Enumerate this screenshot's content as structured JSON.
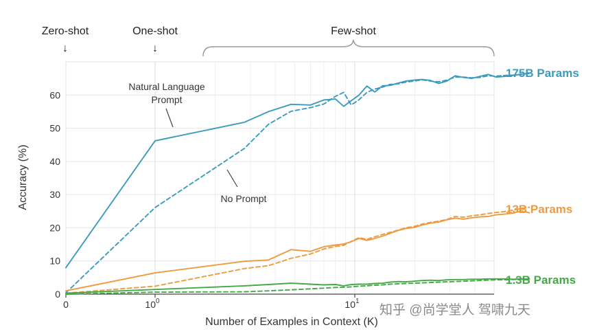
{
  "chart_data": {
    "type": "line",
    "x_scale": "log (0 placed at left edge)",
    "xlabel": "Number of Examples in Context  (K)",
    "ylabel": "Accuracy (%)",
    "ylim": [
      0,
      70
    ],
    "yticks": [
      0,
      10,
      20,
      30,
      40,
      50,
      60
    ],
    "xticks": [
      {
        "x": 0,
        "label": "0"
      },
      {
        "x": 1,
        "label": "10",
        "exp": "0"
      },
      {
        "x": 10,
        "label": "10",
        "exp": "1"
      }
    ],
    "grid": true,
    "regions": [
      {
        "label": "Zero-shot",
        "marker": "↓"
      },
      {
        "label": "One-shot",
        "marker": "↓"
      },
      {
        "label": "Few-shot",
        "marker": "brace"
      }
    ],
    "groups": [
      {
        "label": "175B Params",
        "color": "#3a9bbd"
      },
      {
        "label": "13B Params",
        "color": "#ef9a3d"
      },
      {
        "label": "1.3B Params",
        "color": "#43a846"
      }
    ],
    "annotations": [
      {
        "text": [
          "Natural Language",
          "Prompt"
        ]
      },
      {
        "text": [
          "No Prompt"
        ]
      }
    ],
    "series": [
      {
        "group": 0,
        "style": "solid",
        "points": [
          [
            0,
            8
          ],
          [
            1,
            46.2
          ],
          [
            2.8,
            51.8
          ],
          [
            3.7,
            55
          ],
          [
            4.8,
            57.2
          ],
          [
            6,
            57
          ],
          [
            7,
            58.5
          ],
          [
            8,
            58.8
          ],
          [
            8.8,
            56.6
          ],
          [
            9.6,
            58.3
          ],
          [
            10.5,
            60
          ],
          [
            11.5,
            62.7
          ],
          [
            12.6,
            60.9
          ],
          [
            13.8,
            62.8
          ],
          [
            15,
            62.9
          ],
          [
            16.5,
            63.6
          ],
          [
            18,
            64.2
          ],
          [
            19.8,
            64.5
          ],
          [
            21.7,
            64.7
          ],
          [
            23.9,
            64.4
          ],
          [
            26.3,
            63.5
          ],
          [
            28.9,
            64.2
          ],
          [
            31.8,
            65.8
          ],
          [
            35,
            65.3
          ],
          [
            38.5,
            65
          ],
          [
            42.3,
            65.6
          ],
          [
            46.5,
            66.2
          ],
          [
            51.1,
            65.4
          ],
          [
            56.2,
            65.6
          ],
          [
            61.9,
            65.9
          ],
          [
            68,
            66.3
          ],
          [
            74.8,
            66.5
          ]
        ]
      },
      {
        "group": 0,
        "style": "dashed",
        "points": [
          [
            0,
            0.4
          ],
          [
            1,
            26.1
          ],
          [
            2.8,
            43.9
          ],
          [
            3.7,
            51.2
          ],
          [
            4.8,
            55.1
          ],
          [
            6,
            56.2
          ],
          [
            7,
            57.3
          ],
          [
            8,
            59.6
          ],
          [
            8.8,
            60.8
          ],
          [
            9.6,
            57
          ],
          [
            10.5,
            58.6
          ],
          [
            11.5,
            60.8
          ],
          [
            12.6,
            61.8
          ],
          [
            13.8,
            62.4
          ],
          [
            15,
            63.2
          ],
          [
            16.5,
            63.4
          ],
          [
            18,
            63.9
          ],
          [
            19.8,
            64.2
          ],
          [
            21.7,
            64.6
          ],
          [
            23.9,
            64.2
          ],
          [
            26.3,
            64
          ],
          [
            28.9,
            64.5
          ],
          [
            31.8,
            65.4
          ],
          [
            35,
            65.4
          ],
          [
            38.5,
            65.2
          ],
          [
            42.3,
            65.3
          ],
          [
            46.5,
            65.8
          ],
          [
            51.1,
            65.7
          ],
          [
            56.2,
            65.9
          ],
          [
            61.9,
            66
          ],
          [
            68,
            66.2
          ],
          [
            74.8,
            66.6
          ]
        ]
      },
      {
        "group": 1,
        "style": "solid",
        "points": [
          [
            0,
            1
          ],
          [
            1,
            6.4
          ],
          [
            2.8,
            9.9
          ],
          [
            3.7,
            10.3
          ],
          [
            4.8,
            13.4
          ],
          [
            6,
            12.9
          ],
          [
            7,
            14.3
          ],
          [
            8,
            14.8
          ],
          [
            8.8,
            15.1
          ],
          [
            9.6,
            15.8
          ],
          [
            10.5,
            16.8
          ],
          [
            11.5,
            16.2
          ],
          [
            12.6,
            16.8
          ],
          [
            13.8,
            17.5
          ],
          [
            15,
            18.3
          ],
          [
            16.5,
            19.2
          ],
          [
            18,
            19.8
          ],
          [
            19.8,
            20.1
          ],
          [
            21.7,
            20.8
          ],
          [
            23.9,
            21.4
          ],
          [
            26.3,
            21.7
          ],
          [
            28.9,
            22.4
          ],
          [
            31.8,
            22.9
          ],
          [
            35,
            22.6
          ],
          [
            38.5,
            23
          ],
          [
            42.3,
            23.3
          ],
          [
            46.5,
            23.4
          ],
          [
            51.1,
            23.9
          ],
          [
            56.2,
            24.1
          ],
          [
            61.9,
            24.4
          ],
          [
            68,
            25.1
          ],
          [
            74.8,
            24.5
          ]
        ]
      },
      {
        "group": 1,
        "style": "dashed",
        "points": [
          [
            0,
            0.3
          ],
          [
            1,
            2.4
          ],
          [
            2.8,
            7.7
          ],
          [
            3.7,
            8.6
          ],
          [
            4.8,
            10.8
          ],
          [
            6,
            12.1
          ],
          [
            7,
            13.6
          ],
          [
            8,
            14.4
          ],
          [
            8.8,
            14.7
          ],
          [
            9.6,
            15.9
          ],
          [
            10.5,
            17
          ],
          [
            11.5,
            16.5
          ],
          [
            12.6,
            17.3
          ],
          [
            13.8,
            18
          ],
          [
            15,
            18.6
          ],
          [
            16.5,
            19.3
          ],
          [
            18,
            20
          ],
          [
            19.8,
            20.4
          ],
          [
            21.7,
            21.1
          ],
          [
            23.9,
            21.6
          ],
          [
            26.3,
            22
          ],
          [
            28.9,
            22.5
          ],
          [
            31.8,
            23.4
          ],
          [
            35,
            23.2
          ],
          [
            38.5,
            23.6
          ],
          [
            42.3,
            23.9
          ],
          [
            46.5,
            24.3
          ],
          [
            51.1,
            24.6
          ],
          [
            56.2,
            24.9
          ],
          [
            61.9,
            25.3
          ],
          [
            68,
            25.8
          ],
          [
            74.8,
            26.2
          ]
        ]
      },
      {
        "group": 2,
        "style": "solid",
        "points": [
          [
            0,
            0.3
          ],
          [
            1,
            1.4
          ],
          [
            2.8,
            2.5
          ],
          [
            3.7,
            2.9
          ],
          [
            4.8,
            3.3
          ],
          [
            6,
            3
          ],
          [
            7,
            2.8
          ],
          [
            8,
            2.9
          ],
          [
            8.8,
            2.5
          ],
          [
            9.6,
            2.9
          ],
          [
            10.5,
            3
          ],
          [
            11.5,
            3
          ],
          [
            12.6,
            3.2
          ],
          [
            13.8,
            3.3
          ],
          [
            15,
            3.6
          ],
          [
            16.5,
            3.8
          ],
          [
            18,
            3.7
          ],
          [
            19.8,
            3.9
          ],
          [
            21.7,
            4.1
          ],
          [
            23.9,
            4.2
          ],
          [
            26.3,
            4.1
          ],
          [
            28.9,
            4.3
          ],
          [
            31.8,
            4.4
          ],
          [
            35,
            4.4
          ],
          [
            38.5,
            4.5
          ],
          [
            42.3,
            4.5
          ],
          [
            46.5,
            4.6
          ],
          [
            51.1,
            4.6
          ],
          [
            56.2,
            4.6
          ],
          [
            61.9,
            4.5
          ],
          [
            68,
            4.6
          ],
          [
            74.8,
            4.5
          ]
        ]
      },
      {
        "group": 2,
        "style": "dashed",
        "points": [
          [
            0,
            0
          ],
          [
            1,
            0.6
          ],
          [
            2.8,
            0.7
          ],
          [
            3.7,
            1
          ],
          [
            4.8,
            1.3
          ],
          [
            6,
            1.6
          ],
          [
            7,
            1.8
          ],
          [
            8,
            2
          ],
          [
            8.8,
            2.1
          ],
          [
            9.6,
            2.2
          ],
          [
            10.5,
            2.4
          ],
          [
            11.5,
            2.5
          ],
          [
            12.6,
            2.7
          ],
          [
            13.8,
            2.8
          ],
          [
            15,
            3
          ],
          [
            16.5,
            3.1
          ],
          [
            18,
            3.2
          ],
          [
            19.8,
            3.3
          ],
          [
            21.7,
            3.4
          ],
          [
            23.9,
            3.5
          ],
          [
            26.3,
            3.6
          ],
          [
            28.9,
            3.7
          ],
          [
            31.8,
            3.8
          ],
          [
            35,
            3.9
          ],
          [
            38.5,
            4
          ],
          [
            42.3,
            4.1
          ],
          [
            46.5,
            4.2
          ],
          [
            51.1,
            4.3
          ],
          [
            56.2,
            4.3
          ],
          [
            61.9,
            4.4
          ],
          [
            68,
            4.5
          ],
          [
            74.8,
            4.6
          ]
        ]
      }
    ]
  },
  "watermark": {
    "text": "知乎 @尚学堂人  驾啸九天"
  }
}
